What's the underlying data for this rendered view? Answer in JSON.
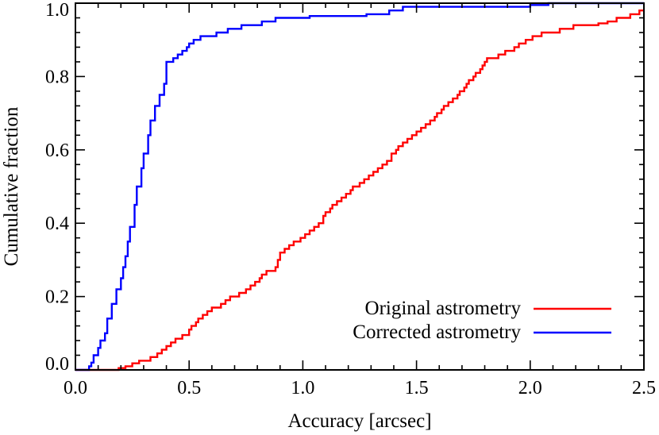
{
  "chart_data": {
    "type": "line",
    "step": true,
    "xlabel": "Accuracy [arcsec]",
    "ylabel": "Cumulative fraction",
    "xlim": [
      0,
      2.5
    ],
    "ylim": [
      0,
      1
    ],
    "xticks": [
      "0.0",
      "0.5",
      "1.0",
      "1.5",
      "2.0",
      "2.5"
    ],
    "yticks": [
      "0.0",
      "0.2",
      "0.4",
      "0.6",
      "0.8",
      "1.0"
    ],
    "grid": false,
    "legend_position": "bottom-right",
    "series": [
      {
        "name": "Original astrometry",
        "color": "#ff0000",
        "points": [
          [
            0.0,
            0.0
          ],
          [
            0.17,
            0.0
          ],
          [
            0.19,
            0.005
          ],
          [
            0.22,
            0.01
          ],
          [
            0.25,
            0.018
          ],
          [
            0.28,
            0.025
          ],
          [
            0.33,
            0.035
          ],
          [
            0.36,
            0.045
          ],
          [
            0.38,
            0.055
          ],
          [
            0.4,
            0.065
          ],
          [
            0.42,
            0.075
          ],
          [
            0.44,
            0.085
          ],
          [
            0.47,
            0.095
          ],
          [
            0.5,
            0.11
          ],
          [
            0.51,
            0.12
          ],
          [
            0.53,
            0.13
          ],
          [
            0.54,
            0.14
          ],
          [
            0.56,
            0.15
          ],
          [
            0.58,
            0.16
          ],
          [
            0.6,
            0.17
          ],
          [
            0.64,
            0.18
          ],
          [
            0.66,
            0.19
          ],
          [
            0.68,
            0.2
          ],
          [
            0.72,
            0.21
          ],
          [
            0.75,
            0.22
          ],
          [
            0.77,
            0.23
          ],
          [
            0.79,
            0.24
          ],
          [
            0.81,
            0.25
          ],
          [
            0.82,
            0.26
          ],
          [
            0.84,
            0.27
          ],
          [
            0.88,
            0.28
          ],
          [
            0.89,
            0.3
          ],
          [
            0.9,
            0.32
          ],
          [
            0.92,
            0.33
          ],
          [
            0.94,
            0.34
          ],
          [
            0.96,
            0.35
          ],
          [
            0.99,
            0.36
          ],
          [
            1.01,
            0.37
          ],
          [
            1.03,
            0.38
          ],
          [
            1.05,
            0.39
          ],
          [
            1.07,
            0.4
          ],
          [
            1.09,
            0.42
          ],
          [
            1.1,
            0.43
          ],
          [
            1.12,
            0.44
          ],
          [
            1.13,
            0.45
          ],
          [
            1.15,
            0.46
          ],
          [
            1.17,
            0.47
          ],
          [
            1.19,
            0.48
          ],
          [
            1.21,
            0.49
          ],
          [
            1.22,
            0.5
          ],
          [
            1.25,
            0.51
          ],
          [
            1.27,
            0.52
          ],
          [
            1.29,
            0.53
          ],
          [
            1.31,
            0.54
          ],
          [
            1.33,
            0.55
          ],
          [
            1.35,
            0.56
          ],
          [
            1.37,
            0.57
          ],
          [
            1.39,
            0.59
          ],
          [
            1.41,
            0.6
          ],
          [
            1.42,
            0.61
          ],
          [
            1.44,
            0.62
          ],
          [
            1.46,
            0.63
          ],
          [
            1.48,
            0.64
          ],
          [
            1.5,
            0.65
          ],
          [
            1.52,
            0.66
          ],
          [
            1.54,
            0.67
          ],
          [
            1.56,
            0.68
          ],
          [
            1.58,
            0.69
          ],
          [
            1.59,
            0.7
          ],
          [
            1.61,
            0.71
          ],
          [
            1.62,
            0.72
          ],
          [
            1.64,
            0.73
          ],
          [
            1.66,
            0.74
          ],
          [
            1.68,
            0.75
          ],
          [
            1.69,
            0.76
          ],
          [
            1.71,
            0.77
          ],
          [
            1.72,
            0.78
          ],
          [
            1.73,
            0.79
          ],
          [
            1.75,
            0.8
          ],
          [
            1.76,
            0.81
          ],
          [
            1.78,
            0.82
          ],
          [
            1.79,
            0.83
          ],
          [
            1.8,
            0.84
          ],
          [
            1.81,
            0.85
          ],
          [
            1.86,
            0.86
          ],
          [
            1.89,
            0.87
          ],
          [
            1.93,
            0.88
          ],
          [
            1.95,
            0.89
          ],
          [
            1.98,
            0.9
          ],
          [
            2.01,
            0.91
          ],
          [
            2.05,
            0.92
          ],
          [
            2.13,
            0.93
          ],
          [
            2.19,
            0.94
          ],
          [
            2.3,
            0.945
          ],
          [
            2.34,
            0.95
          ],
          [
            2.38,
            0.96
          ],
          [
            2.44,
            0.97
          ],
          [
            2.48,
            0.98
          ],
          [
            2.5,
            0.98
          ]
        ]
      },
      {
        "name": "Corrected astrometry",
        "color": "#0000ff",
        "points": [
          [
            0.0,
            0.0
          ],
          [
            0.05,
            0.0
          ],
          [
            0.06,
            0.01
          ],
          [
            0.07,
            0.02
          ],
          [
            0.08,
            0.04
          ],
          [
            0.1,
            0.06
          ],
          [
            0.11,
            0.08
          ],
          [
            0.13,
            0.1
          ],
          [
            0.14,
            0.14
          ],
          [
            0.16,
            0.18
          ],
          [
            0.18,
            0.22
          ],
          [
            0.2,
            0.25
          ],
          [
            0.21,
            0.28
          ],
          [
            0.22,
            0.31
          ],
          [
            0.23,
            0.35
          ],
          [
            0.24,
            0.39
          ],
          [
            0.26,
            0.45
          ],
          [
            0.27,
            0.5
          ],
          [
            0.29,
            0.55
          ],
          [
            0.3,
            0.59
          ],
          [
            0.32,
            0.64
          ],
          [
            0.33,
            0.68
          ],
          [
            0.35,
            0.72
          ],
          [
            0.37,
            0.75
          ],
          [
            0.39,
            0.78
          ],
          [
            0.4,
            0.84
          ],
          [
            0.43,
            0.85
          ],
          [
            0.45,
            0.86
          ],
          [
            0.47,
            0.87
          ],
          [
            0.49,
            0.88
          ],
          [
            0.5,
            0.89
          ],
          [
            0.52,
            0.9
          ],
          [
            0.55,
            0.91
          ],
          [
            0.62,
            0.92
          ],
          [
            0.67,
            0.93
          ],
          [
            0.73,
            0.94
          ],
          [
            0.82,
            0.95
          ],
          [
            0.88,
            0.96
          ],
          [
            1.03,
            0.965
          ],
          [
            1.28,
            0.97
          ],
          [
            1.38,
            0.98
          ],
          [
            1.44,
            0.99
          ],
          [
            2.0,
            0.995
          ],
          [
            2.08,
            1.0
          ],
          [
            2.5,
            1.0
          ]
        ]
      }
    ]
  }
}
